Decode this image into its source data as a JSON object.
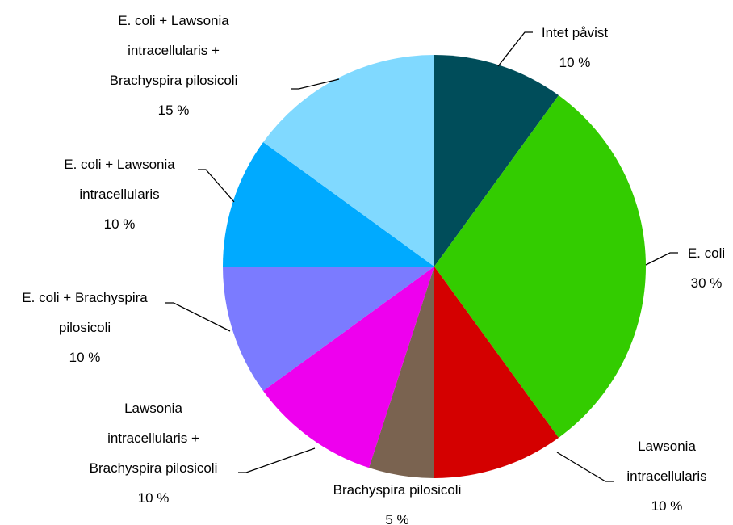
{
  "chart_data": {
    "type": "pie",
    "categories": [
      "Intet påvist",
      "E. coli",
      "Lawsonia intracellularis",
      "Brachyspira pilosicoli",
      "Lawsonia intracellularis + Brachyspira pilosicoli",
      "E. coli + Brachyspira pilosicoli",
      "E. coli + Lawsonia intracellularis",
      "E. coli + Lawsonia intracellularis + Brachyspira pilosicoli"
    ],
    "values": [
      10,
      30,
      10,
      5,
      10,
      10,
      10,
      15
    ],
    "value_labels": [
      "10 %",
      "30 %",
      "10 %",
      "5 %",
      "10 %",
      "10 %",
      "10 %",
      "15 %"
    ],
    "colors": [
      "#004d5a",
      "#33cc00",
      "#d40000",
      "#7a6350",
      "#ee00ee",
      "#7b7bff",
      "#00aaff",
      "#80d9ff"
    ]
  }
}
